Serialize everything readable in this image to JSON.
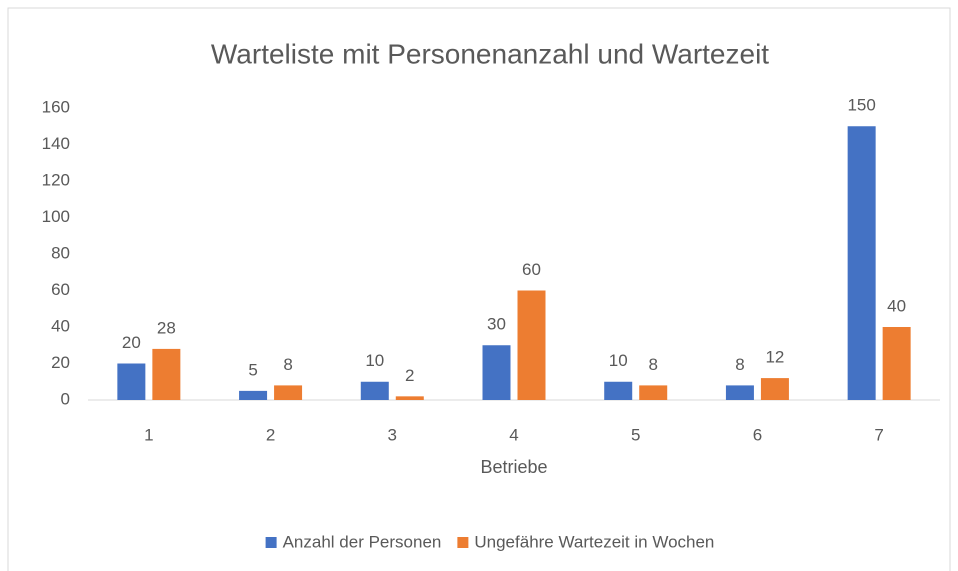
{
  "chart_data": {
    "type": "bar",
    "title": "Warteliste mit Personenanzahl und Wartezeit",
    "x_label": "Betriebe",
    "categories": [
      "1",
      "2",
      "3",
      "4",
      "5",
      "6",
      "7"
    ],
    "series": [
      {
        "name": "Anzahl der Personen",
        "color": "#4472c4",
        "values": [
          20,
          5,
          10,
          30,
          10,
          8,
          150
        ]
      },
      {
        "name": "Ungefähre Wartezeit in Wochen",
        "color": "#ed7d31",
        "values": [
          28,
          8,
          2,
          60,
          8,
          12,
          40
        ]
      }
    ],
    "ylim": [
      0,
      160
    ],
    "yticks": [
      0,
      20,
      40,
      60,
      80,
      100,
      120,
      140,
      160
    ],
    "grid": false,
    "legend": "bottom"
  }
}
